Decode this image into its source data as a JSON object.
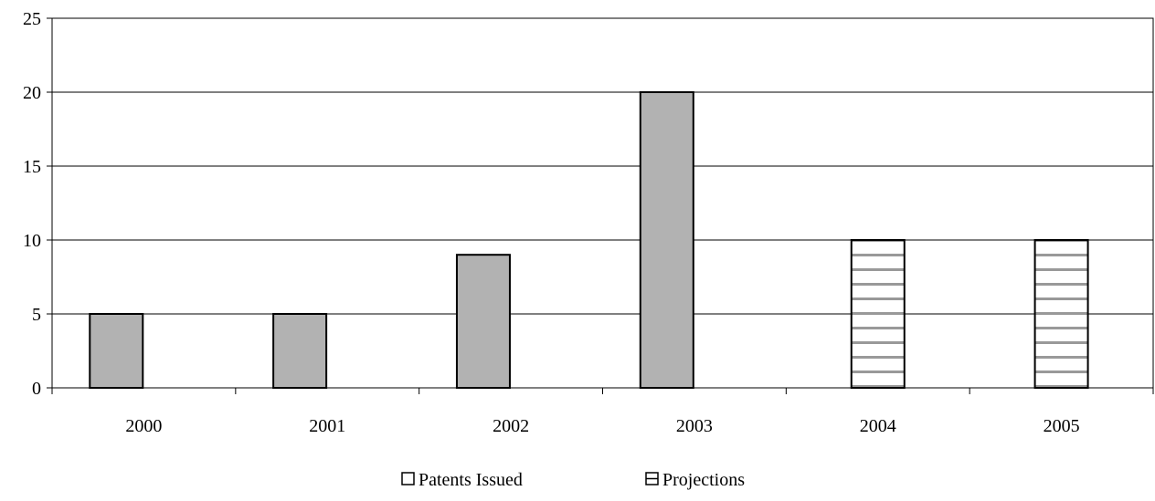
{
  "chart_data": {
    "type": "bar",
    "title": "",
    "xlabel": "",
    "ylabel": "",
    "categories": [
      "2000",
      "2001",
      "2002",
      "2003",
      "2004",
      "2005"
    ],
    "ylim": [
      0,
      25
    ],
    "yticks": [
      "0",
      "5",
      "10",
      "15",
      "20",
      "25"
    ],
    "grid": true,
    "legend_position": "bottom",
    "series": [
      {
        "name": "Patents Issued",
        "values": [
          5,
          5,
          9,
          20,
          null,
          null
        ],
        "color": "#b2b2b2",
        "pattern": "solid"
      },
      {
        "name": "Projections",
        "values": [
          null,
          null,
          null,
          null,
          10,
          10
        ],
        "color": "#ffffff",
        "pattern": "horizontal-stripes",
        "stripe_color": "#999999"
      }
    ]
  }
}
